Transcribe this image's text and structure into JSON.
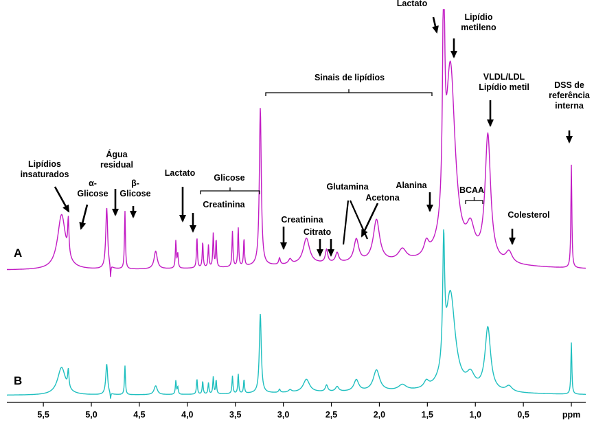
{
  "chart_data": {
    "type": "line",
    "x_unit": "ppm",
    "xlim": [
      5.88,
      -0.15
    ],
    "x_reversed": true,
    "x_ticks": [
      {
        "value": 5.5,
        "label": "5,5"
      },
      {
        "value": 5.0,
        "label": "5,0"
      },
      {
        "value": 4.5,
        "label": "4,5"
      },
      {
        "value": 4.0,
        "label": "4,0"
      },
      {
        "value": 3.5,
        "label": "3,5"
      },
      {
        "value": 3.0,
        "label": "3,0"
      },
      {
        "value": 2.5,
        "label": "2,5"
      },
      {
        "value": 2.0,
        "label": "2,0"
      },
      {
        "value": 1.5,
        "label": "1,5"
      },
      {
        "value": 1.0,
        "label": "1,0"
      },
      {
        "value": 0.5,
        "label": "0,5"
      },
      {
        "value": 0.0,
        "label": "ppm"
      }
    ],
    "series": [
      {
        "name": "A",
        "color": "#c21cc4",
        "role": "upper spectrum"
      },
      {
        "name": "B",
        "color": "#1fbfbf",
        "role": "lower spectrum"
      }
    ],
    "peaks": [
      {
        "ppm": 5.31,
        "height": 0.34,
        "width": 0.05
      },
      {
        "ppm": 5.24,
        "height": 0.22,
        "width": 0.008
      },
      {
        "ppm": 4.84,
        "height": 0.38,
        "width": 0.012
      },
      {
        "ppm": 4.8,
        "height": -0.08,
        "width": 0.004
      },
      {
        "ppm": 4.65,
        "height": 0.36,
        "width": 0.006
      },
      {
        "ppm": 4.33,
        "height": 0.11,
        "width": 0.02
      },
      {
        "ppm": 4.12,
        "height": 0.17,
        "width": 0.006
      },
      {
        "ppm": 4.1,
        "height": 0.09,
        "width": 0.006
      },
      {
        "ppm": 3.9,
        "height": 0.19,
        "width": 0.006
      },
      {
        "ppm": 3.84,
        "height": 0.16,
        "width": 0.006
      },
      {
        "ppm": 3.78,
        "height": 0.14,
        "width": 0.006
      },
      {
        "ppm": 3.73,
        "height": 0.21,
        "width": 0.006
      },
      {
        "ppm": 3.7,
        "height": 0.17,
        "width": 0.006
      },
      {
        "ppm": 3.53,
        "height": 0.22,
        "width": 0.006
      },
      {
        "ppm": 3.47,
        "height": 0.24,
        "width": 0.006
      },
      {
        "ppm": 3.41,
        "height": 0.17,
        "width": 0.006
      },
      {
        "ppm": 3.24,
        "height": 0.98,
        "width": 0.012
      },
      {
        "ppm": 3.04,
        "height": 0.04,
        "width": 0.01
      },
      {
        "ppm": 2.93,
        "height": 0.03,
        "width": 0.02
      },
      {
        "ppm": 2.76,
        "height": 0.16,
        "width": 0.04
      },
      {
        "ppm": 2.55,
        "height": 0.08,
        "width": 0.015
      },
      {
        "ppm": 2.44,
        "height": 0.06,
        "width": 0.02
      },
      {
        "ppm": 2.24,
        "height": 0.14,
        "width": 0.03
      },
      {
        "ppm": 2.03,
        "height": 0.26,
        "width": 0.04
      },
      {
        "ppm": 1.76,
        "height": 0.07,
        "width": 0.05
      },
      {
        "ppm": 1.51,
        "height": 0.08,
        "width": 0.03
      },
      {
        "ppm": 1.33,
        "height": 1.5,
        "width": 0.012
      },
      {
        "ppm": 1.26,
        "height": 1.2,
        "width": 0.06
      },
      {
        "ppm": 1.05,
        "height": 0.17,
        "width": 0.05
      },
      {
        "ppm": 0.87,
        "height": 0.78,
        "width": 0.035
      },
      {
        "ppm": 0.65,
        "height": 0.07,
        "width": 0.04
      },
      {
        "ppm": 0.0,
        "height": 0.64,
        "width": 0.006
      }
    ],
    "annotations": [
      {
        "id": "lipidios-insaturados",
        "lines": [
          "Lipídios",
          "insaturados"
        ],
        "ppm": 5.31
      },
      {
        "id": "alfa-glicose",
        "lines": [
          "α-",
          "Glicose"
        ],
        "ppm": 5.24
      },
      {
        "id": "agua-residual",
        "lines": [
          "Água",
          "residual"
        ],
        "ppm": 4.84
      },
      {
        "id": "beta-glicose",
        "lines": [
          "β-",
          "Glicose"
        ],
        "ppm": 4.65
      },
      {
        "id": "lactato-4",
        "lines": [
          "Lactato"
        ],
        "ppm": 4.12
      },
      {
        "id": "glicose-bracket",
        "lines": [
          "Glicose"
        ],
        "ppm_range": [
          3.93,
          3.3
        ]
      },
      {
        "id": "creatinina-3.9",
        "lines": [
          "Creatinina"
        ],
        "ppm": 4.04
      },
      {
        "id": "sinais-lipidios",
        "lines": [
          "Sinais de lipídios"
        ],
        "ppm_range": [
          3.25,
          1.45
        ]
      },
      {
        "id": "creatinina-3.0",
        "lines": [
          "Creatinina"
        ],
        "ppm": 3.04
      },
      {
        "id": "citrato",
        "lines": [
          "Citrato"
        ],
        "ppm_range": [
          2.64,
          2.55
        ]
      },
      {
        "id": "glutamina",
        "lines": [
          "Glutamina"
        ],
        "ppm_range": [
          2.43,
          2.17
        ]
      },
      {
        "id": "acetona",
        "lines": [
          "Acetona"
        ],
        "ppm": 2.22
      },
      {
        "id": "alanina",
        "lines": [
          "Alanina"
        ],
        "ppm": 1.48
      },
      {
        "id": "lactato-1.3",
        "lines": [
          "Lactato"
        ],
        "ppm": 1.33
      },
      {
        "id": "lipidio-metileno",
        "lines": [
          "Lipídio",
          "metileno"
        ],
        "ppm": 1.26
      },
      {
        "id": "bcaa",
        "lines": [
          "BCAA"
        ],
        "ppm_range": [
          1.1,
          0.9
        ]
      },
      {
        "id": "vldl-ldl",
        "lines": [
          "VLDL/LDL",
          "Lipídio metil"
        ],
        "ppm": 0.87
      },
      {
        "id": "colesterol",
        "lines": [
          "Colesterol"
        ],
        "ppm": 0.62
      },
      {
        "id": "dss",
        "lines": [
          "DSS de",
          "referência",
          "interna"
        ],
        "ppm": 0.0
      }
    ]
  }
}
